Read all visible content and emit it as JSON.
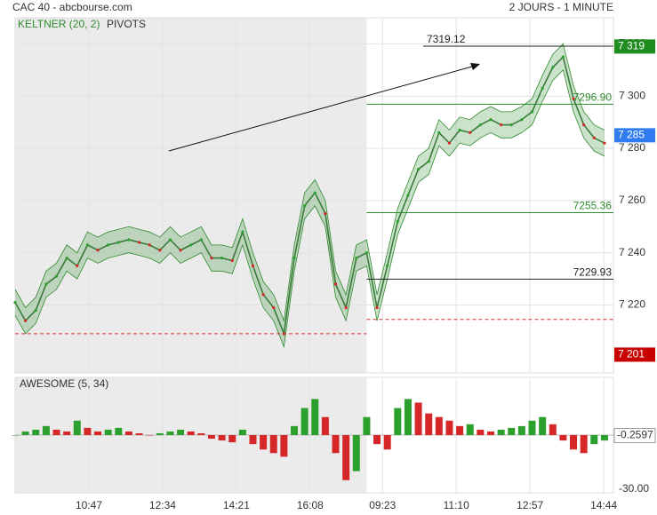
{
  "header": {
    "left": "CAC 40 - abcbourse.com",
    "right": "2 JOURS - 1 MINUTE"
  },
  "chart_data": [
    {
      "type": "line",
      "color": "#3a7a3a",
      "x": [
        0,
        15,
        30,
        45,
        60,
        75,
        90,
        105,
        120,
        135,
        150,
        165,
        180,
        195,
        210,
        225,
        240,
        255,
        270,
        285,
        300,
        315,
        330,
        345,
        360,
        375,
        390,
        405,
        420,
        435,
        450,
        465,
        480,
        495,
        510,
        525,
        540,
        555,
        570,
        585,
        600,
        615,
        630,
        645,
        660,
        675,
        690,
        705,
        720,
        735,
        750,
        765,
        780,
        795,
        810,
        825,
        840,
        855
      ],
      "values": [
        7221,
        7214,
        7218,
        7228,
        7231,
        7238,
        7235,
        7243,
        7241,
        7243,
        7244,
        7245,
        7244,
        7243,
        7241,
        7245,
        7241,
        7243,
        7245,
        7238,
        7238,
        7237,
        7248,
        7235,
        7224,
        7219,
        7209,
        7238,
        7258,
        7263,
        7255,
        7228,
        7219,
        7238,
        7240,
        7219,
        7235,
        7252,
        7262,
        7272,
        7275,
        7286,
        7282,
        7287,
        7286,
        7289,
        7291,
        7289,
        7289,
        7291,
        7294,
        7303,
        7311,
        7315,
        7299,
        7289,
        7284,
        7282
      ],
      "keltner": {
        "name": "KELTNER (20, 2)",
        "color": "#2e8b2e",
        "upper": [
          7226,
          7219,
          7223,
          7233,
          7236,
          7243,
          7240,
          7248,
          7246,
          7248,
          7249,
          7250,
          7249,
          7248,
          7246,
          7250,
          7246,
          7248,
          7250,
          7243,
          7243,
          7242,
          7253,
          7240,
          7229,
          7224,
          7214,
          7243,
          7263,
          7268,
          7260,
          7233,
          7224,
          7243,
          7245,
          7224,
          7240,
          7257,
          7267,
          7277,
          7280,
          7291,
          7287,
          7292,
          7291,
          7294,
          7296,
          7294,
          7294,
          7296,
          7299,
          7308,
          7316,
          7320,
          7304,
          7294,
          7289,
          7287
        ],
        "lower": [
          7216,
          7209,
          7213,
          7223,
          7226,
          7233,
          7230,
          7238,
          7236,
          7238,
          7239,
          7240,
          7239,
          7238,
          7236,
          7240,
          7236,
          7238,
          7240,
          7233,
          7233,
          7232,
          7243,
          7230,
          7219,
          7214,
          7204,
          7233,
          7253,
          7258,
          7250,
          7223,
          7214,
          7233,
          7235,
          7214,
          7230,
          7247,
          7257,
          7267,
          7270,
          7281,
          7277,
          7282,
          7281,
          7284,
          7286,
          7284,
          7284,
          7286,
          7289,
          7298,
          7306,
          7310,
          7294,
          7284,
          7279,
          7277
        ]
      },
      "pivots": {
        "name": "PIVOTS",
        "levels": [
          {
            "value": 7319.12,
            "color": "#222222",
            "from": 592
          },
          {
            "value": 7296.9,
            "label": "7296.90",
            "color": "#2e8b2e",
            "from": 510
          },
          {
            "value": 7255.36,
            "color": "#2e8b2e",
            "from": 510
          },
          {
            "value": 7229.93,
            "color": "#222222",
            "from": 510
          }
        ]
      },
      "dashed_levels": [
        {
          "value": 7209,
          "from": 0,
          "to": 510,
          "color": "#d33"
        },
        {
          "value": 7214.5,
          "from": 510,
          "to": 868,
          "color": "#d33"
        }
      ],
      "price_labels": [
        {
          "value": 7319,
          "label": "7 319",
          "color": "#1e8c1e"
        },
        {
          "value": 7285,
          "label": "7 285",
          "color": "#2f7bf0"
        },
        {
          "value": 7201,
          "label": "7 201",
          "color": "#c80000"
        }
      ],
      "shaded_xrange": [
        0,
        510
      ],
      "xlim": [
        0,
        868
      ],
      "xticks": [
        {
          "value": 107,
          "label": "10:47"
        },
        {
          "value": 214,
          "label": "12:34"
        },
        {
          "value": 321,
          "label": "14:21"
        },
        {
          "value": 428,
          "label": "16:08"
        },
        {
          "value": 533,
          "label": "09:23"
        },
        {
          "value": 640,
          "label": "11:10"
        },
        {
          "value": 747,
          "label": "12:57"
        },
        {
          "value": 854,
          "label": "14:44"
        }
      ],
      "ylim": [
        7194,
        7330
      ],
      "yticks": [
        {
          "value": 7220,
          "label": "7 220"
        },
        {
          "value": 7240,
          "label": "7 240"
        },
        {
          "value": 7260,
          "label": "7 260"
        },
        {
          "value": 7280,
          "label": "7 280"
        },
        {
          "value": 7300,
          "label": "7 300"
        },
        {
          "value": 7320,
          "label": "7 320"
        }
      ],
      "grid": true
    },
    {
      "type": "bar",
      "title": "AWESOME (5, 34)",
      "up_color": "#2ca02c",
      "down_color": "#d62728",
      "x": [
        0,
        15,
        30,
        45,
        60,
        75,
        90,
        105,
        120,
        135,
        150,
        165,
        180,
        195,
        210,
        225,
        240,
        255,
        270,
        285,
        300,
        315,
        330,
        345,
        360,
        375,
        390,
        405,
        420,
        435,
        450,
        465,
        480,
        495,
        510,
        525,
        540,
        555,
        570,
        585,
        600,
        615,
        630,
        645,
        660,
        675,
        690,
        705,
        720,
        735,
        750,
        765,
        780,
        795,
        810,
        825,
        840,
        855
      ],
      "values": [
        0,
        2,
        3,
        5,
        3,
        2,
        8,
        4,
        2,
        3,
        4,
        2,
        1,
        0,
        1,
        2,
        3,
        2,
        1,
        -2,
        -3,
        -4,
        3,
        -5,
        -8,
        -10,
        -12,
        5,
        15,
        20,
        10,
        -10,
        -25,
        -20,
        10,
        -5,
        -8,
        15,
        20,
        18,
        12,
        10,
        8,
        5,
        6,
        3,
        2,
        3,
        4,
        5,
        8,
        10,
        6,
        -3,
        -8,
        -10,
        -5,
        -3
      ],
      "last_value": -0.2597,
      "shaded_xrange": [
        0,
        510
      ],
      "xlim": [
        0,
        868
      ],
      "ylim": [
        -32,
        32
      ],
      "yticks": [
        {
          "value": -30,
          "label": "-30.00"
        }
      ]
    }
  ]
}
